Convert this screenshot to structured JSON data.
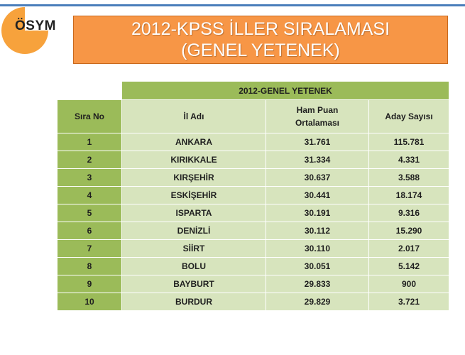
{
  "logo": {
    "text": "ÖSYM"
  },
  "title": {
    "line1": "2012-KPSS İLLER SIRALAMASI",
    "line2": "(GENEL YETENEK)"
  },
  "table": {
    "super_header": "2012-GENEL YETENEK",
    "headers": [
      "Sıra No",
      "İl Adı",
      "Ham Puan Ortalaması",
      "Aday Sayısı"
    ],
    "rows": [
      [
        "1",
        "ANKARA",
        "31.761",
        "115.781"
      ],
      [
        "2",
        "KIRIKKALE",
        "31.334",
        "4.331"
      ],
      [
        "3",
        "KIRŞEHİR",
        "30.637",
        "3.588"
      ],
      [
        "4",
        "ESKİŞEHİR",
        "30.441",
        "18.174"
      ],
      [
        "5",
        "ISPARTA",
        "30.191",
        "9.316"
      ],
      [
        "6",
        "DENİZLİ",
        "30.112",
        "15.290"
      ],
      [
        "7",
        "SİİRT",
        "30.110",
        "2.017"
      ],
      [
        "8",
        "BOLU",
        "30.051",
        "5.142"
      ],
      [
        "9",
        "BAYBURT",
        "29.833",
        "900"
      ],
      [
        "10",
        "BURDUR",
        "29.829",
        "3.721"
      ]
    ]
  },
  "colors": {
    "accent": "#f79646",
    "green_dark": "#9bbb59",
    "green_light": "#d7e4bd"
  }
}
